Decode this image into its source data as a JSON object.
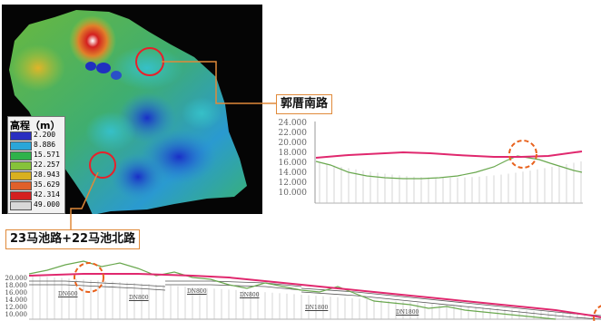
{
  "callouts": {
    "top": "郭厝南路",
    "left": "23马池路+22马池北路"
  },
  "legend": {
    "title": "高程（m）",
    "items": [
      {
        "value": "2.200",
        "color": "#2a2fc0"
      },
      {
        "value": "8.886",
        "color": "#2aa6d8"
      },
      {
        "value": "15.571",
        "color": "#2fb24a"
      },
      {
        "value": "22.257",
        "color": "#86c23a"
      },
      {
        "value": "28.943",
        "color": "#d8b020"
      },
      {
        "value": "35.629",
        "color": "#e0602a"
      },
      {
        "value": "42.314",
        "color": "#d42020"
      },
      {
        "value": "49.000",
        "color": "#d8d8d8"
      }
    ]
  },
  "profile_right": {
    "ticks": [
      "24.000",
      "22.000",
      "20.000",
      "18.000",
      "16.000",
      "14.000",
      "12.000",
      "10.000"
    ]
  },
  "profile_bottom": {
    "ticks": [
      "20.000",
      "18.000",
      "16.000",
      "14.000",
      "12.000",
      "10.000"
    ],
    "pipe_labels": [
      "DN600",
      "DN800",
      "DN800",
      "DN800",
      "DN1800",
      "DN1800"
    ]
  },
  "colors": {
    "road": "#e0286e",
    "ground": "#6aa84f",
    "highlight": "#e8611c",
    "callout_border": "#e08a3a"
  }
}
